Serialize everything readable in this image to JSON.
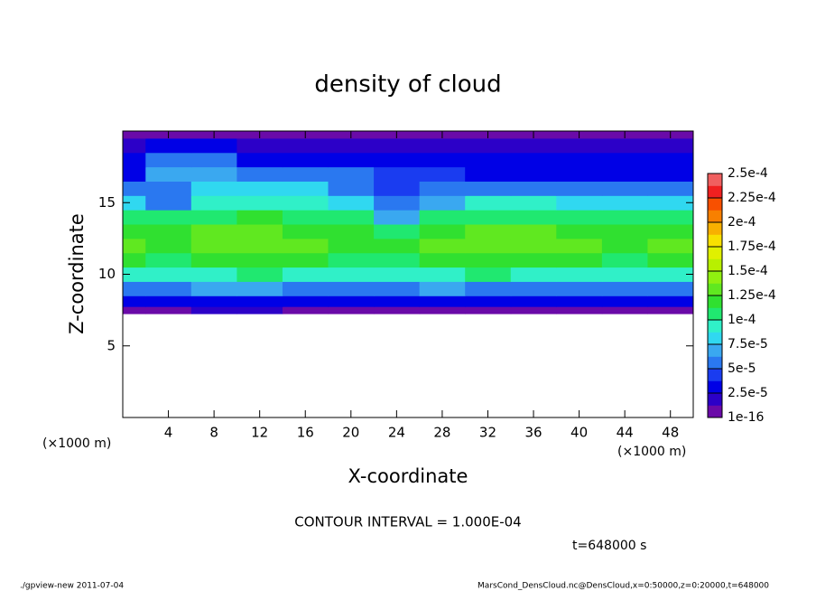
{
  "chart_data": {
    "type": "heatmap",
    "title": "density of cloud",
    "x_label": "X-coordinate",
    "y_label": "Z-coordinate",
    "x_unit_left": "(×1000 m)",
    "x_unit_right": "(×1000 m)",
    "contour_note": "CONTOUR INTERVAL = 1.000E-04",
    "time_note": "t=648000 s",
    "footer_left": "./gpview-new  2011-07-04",
    "footer_right": "MarsCond_DensCloud.nc@DensCloud,x=0:50000,z=0:20000,t=648000",
    "xlim": [
      0,
      50
    ],
    "ylim": [
      0,
      20
    ],
    "xticks": [
      4,
      8,
      12,
      16,
      20,
      24,
      28,
      32,
      36,
      40,
      44,
      48
    ],
    "yticks": [
      5,
      10,
      15
    ],
    "field": {
      "x": [
        0,
        4,
        8,
        12,
        16,
        20,
        24,
        28,
        32,
        36,
        40,
        44,
        48
      ],
      "z": [
        7.5,
        8,
        9,
        10,
        11,
        12,
        13,
        14,
        15,
        16,
        17,
        18,
        19,
        20
      ],
      "values": [
        [
          1e-05,
          1e-05,
          1.5e-05,
          1.5e-05,
          1e-05,
          1e-05,
          1e-05,
          1e-05,
          1e-05,
          1e-05,
          1e-05,
          1e-05,
          1e-05
        ],
        [
          3e-05,
          3e-05,
          3.5e-05,
          3e-05,
          3e-05,
          3e-05,
          3e-05,
          3.5e-05,
          3e-05,
          3e-05,
          3e-05,
          3e-05,
          3e-05
        ],
        [
          6e-05,
          6e-05,
          7e-05,
          6.5e-05,
          6e-05,
          6e-05,
          6e-05,
          6.5e-05,
          6e-05,
          6e-05,
          6e-05,
          6e-05,
          6e-05
        ],
        [
          9e-05,
          9e-05,
          9.5e-05,
          0.0001,
          9.5e-05,
          9e-05,
          9e-05,
          9.5e-05,
          0.0001,
          9.5e-05,
          9e-05,
          9e-05,
          9e-05
        ],
        [
          0.000115,
          0.000112,
          0.000118,
          0.00012,
          0.000115,
          0.000112,
          0.00011,
          0.000115,
          0.00012,
          0.000118,
          0.000115,
          0.000112,
          0.000115
        ],
        [
          0.000125,
          0.00012,
          0.000128,
          0.00013,
          0.000125,
          0.000122,
          0.00012,
          0.000125,
          0.000128,
          0.00013,
          0.000125,
          0.000122,
          0.000125
        ],
        [
          0.00012,
          0.000115,
          0.000125,
          0.000128,
          0.000122,
          0.000118,
          0.00011,
          0.000122,
          0.000125,
          0.000125,
          0.000122,
          0.00012,
          0.000122
        ],
        [
          0.000105,
          0.0001,
          0.00011,
          0.000115,
          0.00011,
          0.0001,
          7e-05,
          0.000105,
          0.00011,
          0.00011,
          0.000108,
          0.000105,
          0.000105
        ],
        [
          8e-05,
          6e-05,
          9e-05,
          9.5e-05,
          9e-05,
          8e-05,
          5e-05,
          7e-05,
          9e-05,
          9e-05,
          8.5e-05,
          8.5e-05,
          8.5e-05
        ],
        [
          5e-05,
          6e-05,
          8e-05,
          8e-05,
          8e-05,
          6e-05,
          4e-05,
          5e-05,
          5.5e-05,
          5.5e-05,
          5e-05,
          5e-05,
          5e-05
        ],
        [
          3.5e-05,
          7e-05,
          7e-05,
          5e-05,
          5e-05,
          5e-05,
          4e-05,
          4e-05,
          3.5e-05,
          3.5e-05,
          3.5e-05,
          3.5e-05,
          3.5e-05
        ],
        [
          2.5e-05,
          5e-05,
          5e-05,
          3e-05,
          3e-05,
          3e-05,
          3e-05,
          2.5e-05,
          2.5e-05,
          2.5e-05,
          2.5e-05,
          2.5e-05,
          2.5e-05
        ],
        [
          2e-05,
          3e-05,
          3e-05,
          2e-05,
          2e-05,
          2e-05,
          2e-05,
          2e-05,
          2e-05,
          2e-05,
          2e-05,
          2e-05,
          2e-05
        ],
        [
          8e-06,
          1.2e-05,
          1.2e-05,
          8e-06,
          1e-05,
          8e-06,
          8e-06,
          8e-06,
          8e-06,
          8e-06,
          8e-06,
          8e-06,
          8e-06
        ]
      ]
    },
    "colorbar": {
      "levels": [
        1e-16,
        {
          "value": 2.5e-05,
          "label": "2.5e-5"
        },
        {
          "value": 5e-05,
          "label": "5e-5"
        },
        {
          "value": 7.5e-05,
          "label": "7.5e-5"
        },
        {
          "value": 0.0001,
          "label": "1e-4"
        },
        {
          "value": 0.000125,
          "label": "1.25e-4"
        },
        {
          "value": 0.00015,
          "label": "1.5e-4"
        },
        {
          "value": 0.000175,
          "label": "1.75e-4"
        },
        {
          "value": 0.0002,
          "label": "2e-4"
        },
        {
          "value": 0.000225,
          "label": "2.25e-4"
        },
        {
          "value": 0.00025,
          "label": "2.5e-4"
        }
      ],
      "colors": [
        "#6a0aa8",
        "#2c00c8",
        "#0000e6",
        "#1a3cf0",
        "#2a78f0",
        "#3aa8f0",
        "#30d8f0",
        "#30f0c8",
        "#20e870",
        "#30e030",
        "#60e820",
        "#90f010",
        "#b8f000",
        "#e0f000",
        "#f8e000",
        "#f8b000",
        "#f88000",
        "#f85000",
        "#f02020",
        "#f06060"
      ]
    }
  }
}
